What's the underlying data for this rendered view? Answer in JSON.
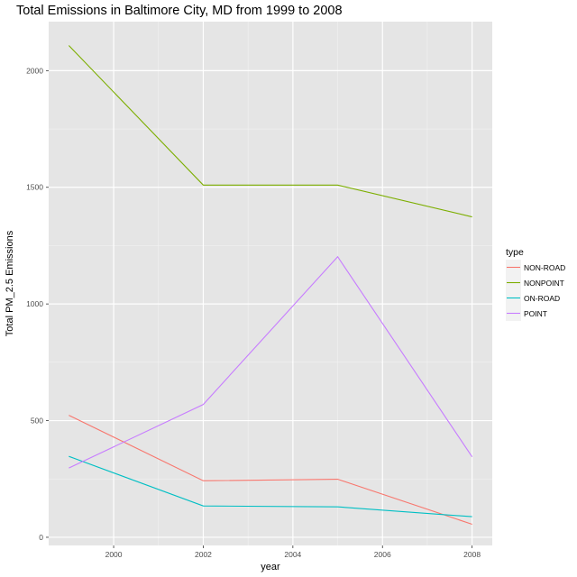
{
  "chart_data": {
    "type": "line",
    "title": "Total Emissions in Baltimore City, MD from 1999 to 2008",
    "xlabel": "year",
    "ylabel": "Total PM_2.5 Emissions",
    "x": [
      1999,
      2002,
      2005,
      2008
    ],
    "xlim": [
      1998.55,
      2008.45
    ],
    "ylim": [
      -35,
      2210
    ],
    "x_ticks": [
      2000,
      2002,
      2004,
      2006,
      2008
    ],
    "y_ticks": [
      0,
      500,
      1000,
      1500,
      2000
    ],
    "grid": true,
    "legend": {
      "title": "type",
      "placement": "right"
    },
    "panel_background": "#e5e5e5",
    "series": [
      {
        "name": "NON-ROAD",
        "color": "#f8766d",
        "values": [
          522.94,
          242.36,
          248.93,
          55.82
        ]
      },
      {
        "name": "NONPOINT",
        "color": "#7cae00",
        "values": [
          2107.62,
          1509.5,
          1509.5,
          1373.21
        ]
      },
      {
        "name": "ON-ROAD",
        "color": "#00bfc4",
        "values": [
          346.82,
          134.31,
          130.43,
          88.28
        ]
      },
      {
        "name": "POINT",
        "color": "#c77cff",
        "values": [
          296.8,
          569.26,
          1202.49,
          344.98
        ]
      }
    ]
  }
}
